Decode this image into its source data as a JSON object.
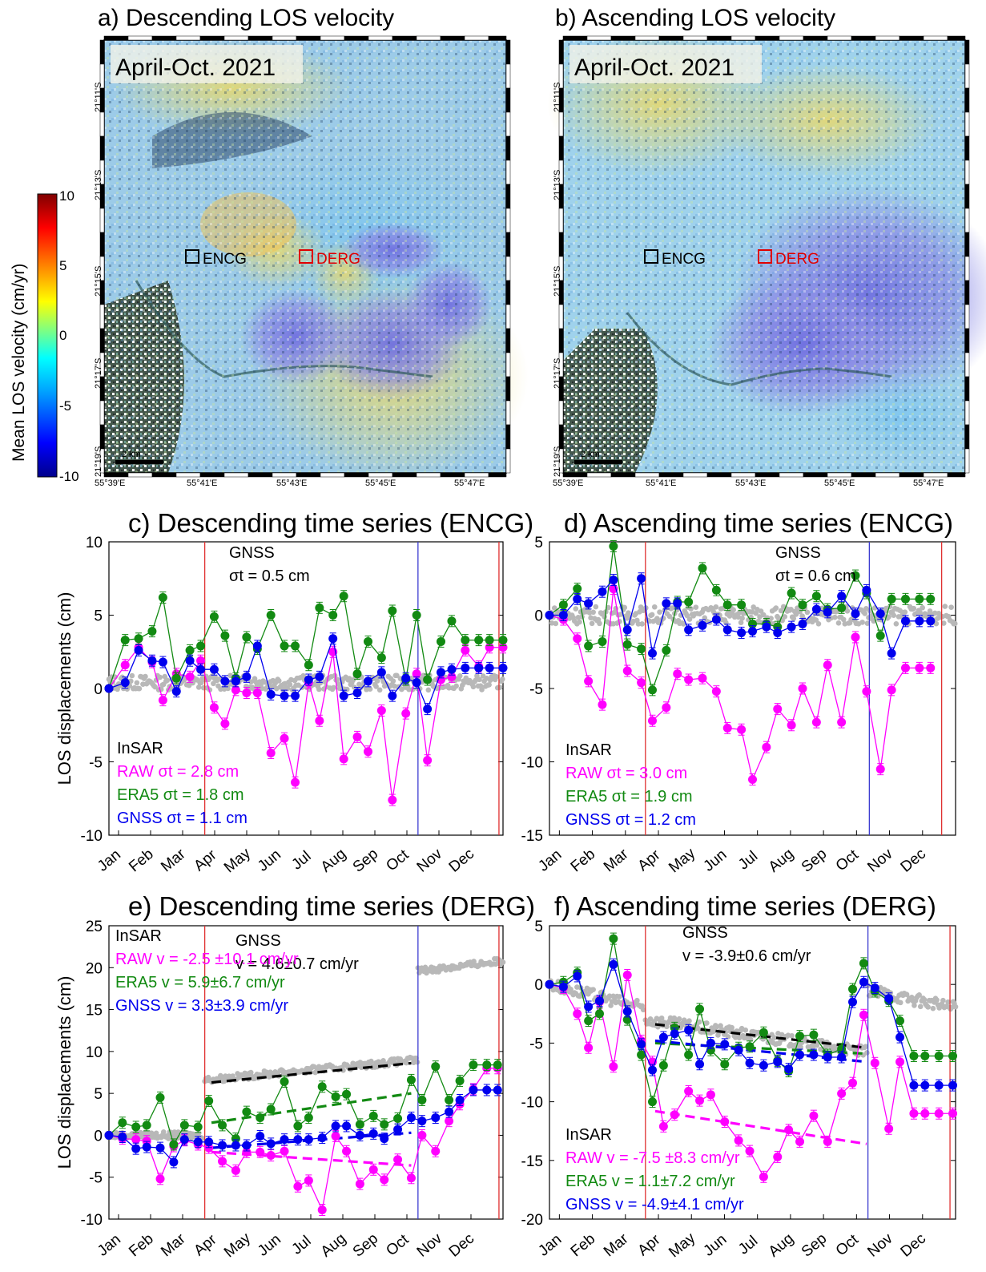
{
  "maps": {
    "colorbar": {
      "label": "Mean LOS velocity (cm/yr)",
      "ticks": [
        "10",
        "5",
        "0",
        "-5",
        "-10"
      ],
      "range": [
        -10,
        10
      ],
      "colors": [
        "#00008b",
        "#0000ff",
        "#00a0ff",
        "#00ffff",
        "#80ff80",
        "#ffff00",
        "#ff8000",
        "#ff0000",
        "#800000"
      ]
    },
    "panels": [
      {
        "title": "a) Descending LOS velocity",
        "period_label": "April-Oct. 2021",
        "lat_ticks": [
          "21°11'S",
          "21°13'S",
          "21°15'S",
          "21°17'S",
          "21°19'S"
        ],
        "lon_ticks": [
          "55°39'E",
          "55°41'E",
          "55°43'E",
          "55°45'E",
          "55°47'E"
        ],
        "scale_label": "2 km",
        "stations": [
          {
            "name": "ENCG",
            "color": "#000000"
          },
          {
            "name": "DERG",
            "color": "#e00000"
          }
        ]
      },
      {
        "title": "b) Ascending LOS velocity",
        "period_label": "April-Oct. 2021",
        "lat_ticks": [
          "21°11'S",
          "21°13'S",
          "21°15'S",
          "21°17'S",
          "21°19'S"
        ],
        "lon_ticks": [
          "55°39'E",
          "55°41'E",
          "55°43'E",
          "55°45'E",
          "55°47'E"
        ],
        "scale_label": "2 km",
        "stations": [
          {
            "name": "ENCG",
            "color": "#000000"
          },
          {
            "name": "DERG",
            "color": "#e00000"
          }
        ]
      }
    ]
  },
  "chart_data": [
    {
      "type": "line",
      "title": "c) Descending time series (ENCG)",
      "ylabel": "LOS displacements (cm)",
      "xlabel": "",
      "ylim": [
        -10,
        10
      ],
      "yticks": [
        10,
        5,
        0,
        -5,
        -10
      ],
      "months": [
        "Jan",
        "Feb",
        "Mar",
        "Apr",
        "May",
        "Jun",
        "Jul",
        "Aug",
        "Sep",
        "Oct",
        "Nov",
        "Dec"
      ],
      "x": [
        0.0,
        0.6,
        1.1,
        1.6,
        2.0,
        2.5,
        3.0,
        3.4,
        3.9,
        4.3,
        4.7,
        5.1,
        5.5,
        6.0,
        6.5,
        6.9,
        7.4,
        7.8,
        8.3,
        8.7,
        9.2,
        9.6,
        10.1,
        10.5,
        11.0,
        11.4,
        11.8,
        12.3,
        12.7,
        13.2,
        13.7,
        14.1,
        14.6
      ],
      "vlines": [
        {
          "x": 3.55,
          "color": "#e03030"
        },
        {
          "x": 11.45,
          "color": "#3c3cd0"
        },
        {
          "x": 14.45,
          "color": "#e03030"
        }
      ],
      "series": [
        {
          "name": "RAW",
          "color": "#ff00ff",
          "values": [
            0.0,
            1.6,
            2.8,
            1.8,
            -0.8,
            1.0,
            0.8,
            1.9,
            -1.3,
            -2.4,
            -0.1,
            -0.3,
            -0.3,
            -4.4,
            -3.4,
            -6.4,
            0.4,
            -2.2,
            2.5,
            -4.8,
            -3.3,
            -4.3,
            -1.5,
            -7.6,
            -1.7,
            1.0,
            -4.9,
            0.6,
            0.8,
            2.6,
            1.5,
            2.8,
            2.8
          ]
        },
        {
          "name": "ERA5",
          "color": "#128a12",
          "values": [
            0.0,
            3.3,
            3.4,
            3.9,
            6.2,
            0.7,
            2.6,
            2.9,
            4.9,
            3.6,
            0.7,
            3.5,
            2.7,
            5.0,
            2.9,
            2.9,
            1.6,
            5.5,
            5.0,
            6.3,
            1.0,
            3.2,
            2.1,
            5.3,
            0.6,
            5.0,
            0.6,
            3.2,
            4.6,
            3.3,
            3.3,
            3.3,
            3.3
          ]
        },
        {
          "name": "GNSS",
          "color": "#0000ee",
          "values": [
            0.0,
            0.4,
            2.6,
            1.9,
            1.8,
            -0.2,
            1.9,
            1.3,
            1.3,
            0.5,
            0.5,
            0.8,
            2.9,
            -0.4,
            -0.5,
            -0.5,
            0.6,
            0.8,
            3.4,
            -0.5,
            -0.3,
            0.5,
            1.1,
            -0.5,
            0.7,
            0.4,
            -1.4,
            1.1,
            1.3,
            1.4,
            1.4,
            1.4,
            1.4
          ]
        }
      ],
      "gnss_band": {
        "center": 0.4,
        "spread": 0.5
      },
      "annotations": [
        {
          "text": "GNSS",
          "color": "#000000"
        },
        {
          "text": "σt = 0.5 cm",
          "color": "#000000"
        }
      ],
      "legend": [
        {
          "text": "InSAR",
          "color": "#000000"
        },
        {
          "text": "RAW   σt = 2.8 cm",
          "color": "#ff00ff"
        },
        {
          "text": "ERA5  σt = 1.8 cm",
          "color": "#128a12"
        },
        {
          "text": "GNSS σt = 1.1 cm",
          "color": "#0000ee"
        }
      ],
      "legend_placement": "bottom-left"
    },
    {
      "type": "line",
      "title": "d) Ascending time series (ENCG)",
      "ylabel": "",
      "xlabel": "",
      "ylim": [
        -15,
        5
      ],
      "yticks": [
        5,
        0,
        -5,
        -10,
        -15
      ],
      "months": [
        "Jan",
        "Feb",
        "Mar",
        "Apr",
        "May",
        "Jun",
        "Jul",
        "Aug",
        "Sep",
        "Oct",
        "Nov",
        "Dec"
      ],
      "x": [
        0.0,
        0.5,
        1.0,
        1.4,
        1.9,
        2.3,
        2.8,
        3.3,
        3.7,
        4.2,
        4.6,
        5.0,
        5.5,
        6.0,
        6.4,
        6.9,
        7.3,
        7.8,
        8.2,
        8.7,
        9.1,
        9.6,
        10.0,
        10.5,
        11.0,
        11.4,
        11.9,
        12.3,
        12.8,
        13.3,
        13.7
      ],
      "vlines": [
        {
          "x": 3.45,
          "color": "#e03030"
        },
        {
          "x": 11.5,
          "color": "#3c3cd0"
        },
        {
          "x": 14.1,
          "color": "#e03030"
        }
      ],
      "series": [
        {
          "name": "RAW",
          "color": "#ff00ff",
          "values": [
            0.0,
            -0.3,
            -1.6,
            -4.5,
            -6.1,
            1.8,
            -3.8,
            -4.6,
            -7.2,
            -6.3,
            -4.0,
            -4.4,
            -4.3,
            -5.2,
            -7.7,
            -7.8,
            -11.2,
            -9.0,
            -6.4,
            -7.5,
            -5.0,
            -7.3,
            -3.4,
            -7.3,
            -1.5,
            -5.2,
            -10.5,
            -5.1,
            -3.6,
            -3.6,
            -3.6
          ]
        },
        {
          "name": "ERA5",
          "color": "#128a12",
          "values": [
            0.0,
            0.7,
            1.8,
            -2.1,
            -1.8,
            4.7,
            -2.0,
            -2.3,
            -5.1,
            -2.4,
            0.9,
            0.9,
            3.2,
            1.7,
            0.7,
            0.7,
            -0.6,
            -0.6,
            -0.8,
            1.5,
            0.7,
            1.3,
            0.4,
            0.5,
            2.7,
            1.5,
            -1.4,
            1.1,
            1.1,
            1.1,
            1.1
          ]
        },
        {
          "name": "GNSS",
          "color": "#0000ee",
          "values": [
            0.0,
            0.0,
            1.1,
            0.8,
            1.6,
            2.4,
            -1.0,
            2.5,
            -2.6,
            0.8,
            0.8,
            -1.0,
            -0.7,
            -0.3,
            -1.0,
            -1.2,
            -1.1,
            -0.8,
            -1.2,
            -0.8,
            -0.6,
            0.4,
            0.2,
            1.3,
            0.1,
            1.7,
            0.1,
            -2.6,
            -0.4,
            -0.4,
            -0.4
          ]
        }
      ],
      "gnss_band": {
        "center": 0.0,
        "spread": 0.6
      },
      "annotations": [
        {
          "text": "GNSS",
          "color": "#000000"
        },
        {
          "text": "σt = 0.6 cm",
          "color": "#000000"
        }
      ],
      "legend": [
        {
          "text": "InSAR",
          "color": "#000000"
        },
        {
          "text": "RAW   σt = 3.0 cm",
          "color": "#ff00ff"
        },
        {
          "text": "ERA5  σt = 1.9 cm",
          "color": "#128a12"
        },
        {
          "text": "GNSS σt = 1.2 cm",
          "color": "#0000ee"
        }
      ],
      "legend_placement": "bottom-left"
    },
    {
      "type": "line",
      "title": "e) Descending time series (DERG)",
      "ylabel": "LOS displacements (cm)",
      "xlabel": "",
      "ylim": [
        -10,
        25
      ],
      "yticks": [
        25,
        20,
        15,
        10,
        5,
        0,
        -5,
        -10
      ],
      "months": [
        "Jan",
        "Feb",
        "Mar",
        "Apr",
        "May",
        "Jun",
        "Jul",
        "Aug",
        "Sep",
        "Oct",
        "Nov",
        "Dec"
      ],
      "x": [
        0.0,
        0.5,
        1.0,
        1.4,
        1.9,
        2.4,
        2.8,
        3.3,
        3.7,
        4.2,
        4.7,
        5.1,
        5.6,
        6.0,
        6.5,
        7.0,
        7.4,
        7.9,
        8.4,
        8.8,
        9.3,
        9.8,
        10.2,
        10.7,
        11.2,
        11.6,
        12.1,
        12.6,
        13.0,
        13.5,
        14.0,
        14.4
      ],
      "vlines": [
        {
          "x": 3.55,
          "color": "#e03030"
        },
        {
          "x": 11.45,
          "color": "#3c3cd0"
        },
        {
          "x": 14.45,
          "color": "#e03030"
        }
      ],
      "series": [
        {
          "name": "RAW",
          "color": "#ff00ff",
          "values": [
            0.0,
            -0.4,
            -0.5,
            -0.7,
            -5.2,
            -1.3,
            -0.6,
            -1.1,
            -1.5,
            -3.1,
            -4.2,
            -2.0,
            -2.0,
            -2.4,
            -1.9,
            -6.1,
            -5.4,
            -8.9,
            -0.1,
            -1.9,
            -5.8,
            -4.1,
            -5.3,
            -2.9,
            -5.1,
            0.0,
            -1.9,
            1.7,
            3.7,
            5.5,
            8.0,
            8.0
          ]
        },
        {
          "name": "ERA5",
          "color": "#128a12",
          "values": [
            0.0,
            1.5,
            1.0,
            1.2,
            4.5,
            -1.1,
            1.2,
            1.0,
            4.1,
            1.2,
            -0.4,
            2.8,
            2.1,
            3.1,
            6.4,
            1.1,
            2.1,
            5.8,
            4.6,
            4.9,
            1.3,
            2.3,
            1.3,
            2.0,
            6.6,
            4.2,
            8.2,
            4.2,
            6.5,
            8.4,
            8.4,
            8.4
          ]
        },
        {
          "name": "GNSS",
          "color": "#0000ee",
          "values": [
            0.0,
            -0.2,
            -1.6,
            -1.4,
            -1.5,
            -3.2,
            -0.5,
            -0.8,
            -0.8,
            -1.2,
            -1.2,
            -1.2,
            -0.1,
            -1.0,
            -0.5,
            -0.5,
            -0.5,
            -0.3,
            1.1,
            1.1,
            0.0,
            0.2,
            -0.4,
            0.7,
            2.1,
            1.7,
            2.1,
            2.8,
            4.2,
            5.4,
            5.4,
            5.4
          ]
        }
      ],
      "trends": [
        {
          "color": "#ff00ff",
          "x0": 3.8,
          "y0": -2.0,
          "x1": 11.2,
          "y1": -3.6
        },
        {
          "color": "#128a12",
          "x0": 3.8,
          "y0": 1.5,
          "x1": 11.2,
          "y1": 5.0
        },
        {
          "color": "#0000ee",
          "x0": 3.8,
          "y0": -1.5,
          "x1": 11.2,
          "y1": 0.3
        },
        {
          "color": "#000000",
          "x0": 3.8,
          "y0": 6.3,
          "x1": 11.2,
          "y1": 8.6
        }
      ],
      "gnss_band": {
        "segments": [
          [
            0.0,
            3.5,
            0.0,
            0.0
          ],
          [
            3.55,
            11.45,
            6.6,
            9.0
          ],
          [
            11.45,
            14.6,
            19.6,
            20.8
          ]
        ],
        "spread": 0.4
      },
      "annotations": [
        {
          "text": "GNSS",
          "color": "#000000"
        },
        {
          "text": "v = 4.6±0.7 cm/yr",
          "color": "#000000"
        }
      ],
      "legend": [
        {
          "text": "InSAR",
          "color": "#000000"
        },
        {
          "text": "RAW   v = -2.5 ±10.1 cm/yr",
          "color": "#ff00ff"
        },
        {
          "text": "ERA5  v = 5.9±6.7 cm/yr",
          "color": "#128a12"
        },
        {
          "text": "GNSS v = 3.3±3.9 cm/yr",
          "color": "#0000ee"
        }
      ],
      "legend_placement": "top-left"
    },
    {
      "type": "line",
      "title": "f) Ascending time series (DERG)",
      "ylabel": "",
      "xlabel": "",
      "ylim": [
        -20,
        5
      ],
      "yticks": [
        5,
        0,
        -5,
        -10,
        -15,
        -20
      ],
      "months": [
        "Jan",
        "Feb",
        "Mar",
        "Apr",
        "May",
        "Jun",
        "Jul",
        "Aug",
        "Sep",
        "Oct",
        "Nov",
        "Dec"
      ],
      "x": [
        0.0,
        0.5,
        1.0,
        1.4,
        1.8,
        2.3,
        2.8,
        3.3,
        3.7,
        4.1,
        4.5,
        5.0,
        5.4,
        5.8,
        6.3,
        6.8,
        7.2,
        7.7,
        8.2,
        8.6,
        9.0,
        9.5,
        10.0,
        10.5,
        10.9,
        11.3,
        11.7,
        12.2,
        12.6,
        13.1,
        13.5,
        14.0,
        14.5
      ],
      "vlines": [
        {
          "x": 3.45,
          "color": "#e03030"
        },
        {
          "x": 11.45,
          "color": "#3c3cd0"
        },
        {
          "x": 14.4,
          "color": "#e03030"
        }
      ],
      "series": [
        {
          "name": "RAW",
          "color": "#ff00ff",
          "values": [
            0.0,
            -0.3,
            -2.5,
            -5.4,
            -1.5,
            -7.0,
            0.8,
            -4.8,
            -6.6,
            -12.1,
            -11.1,
            -9.1,
            -9.9,
            -9.4,
            -11.7,
            -13.3,
            -14.2,
            -16.4,
            -14.7,
            -12.4,
            -13.4,
            -11.2,
            -13.4,
            -9.3,
            -8.4,
            -2.6,
            -6.7,
            -12.3,
            -6.6,
            -11.0,
            -11.0,
            -11.0,
            -11.0
          ]
        },
        {
          "name": "ERA5",
          "color": "#128a12",
          "values": [
            0.0,
            0.2,
            1.0,
            -3.1,
            -2.5,
            3.9,
            -3.0,
            -6.0,
            -10.0,
            -6.9,
            -3.7,
            -6.0,
            -2.1,
            -5.6,
            -6.8,
            -5.4,
            -5.3,
            -4.1,
            -6.5,
            -7.4,
            -4.4,
            -4.3,
            -6.0,
            -5.5,
            -0.4,
            1.8,
            -0.6,
            -1.4,
            -3.1,
            -6.1,
            -6.1,
            -6.1,
            -6.1
          ]
        },
        {
          "name": "GNSS",
          "color": "#0000ee",
          "values": [
            0.0,
            -0.2,
            0.7,
            -1.9,
            -1.4,
            1.7,
            -2.3,
            -5.1,
            -7.3,
            -4.5,
            -4.2,
            -3.9,
            -6.8,
            -5.0,
            -5.1,
            -5.6,
            -6.7,
            -6.9,
            -6.6,
            -7.2,
            -6.0,
            -6.0,
            -6.2,
            -6.2,
            -1.5,
            0.2,
            -0.3,
            -1.2,
            -4.5,
            -8.6,
            -8.6,
            -8.6,
            -8.6
          ]
        }
      ],
      "trends": [
        {
          "color": "#ff00ff",
          "x0": 3.8,
          "y0": -10.8,
          "x1": 11.4,
          "y1": -13.6
        },
        {
          "color": "#128a12",
          "x0": 3.8,
          "y0": -5.0,
          "x1": 11.4,
          "y1": -5.9
        },
        {
          "color": "#0000ee",
          "x0": 3.8,
          "y0": -4.8,
          "x1": 11.4,
          "y1": -6.6
        },
        {
          "color": "#000000",
          "x0": 3.8,
          "y0": -3.4,
          "x1": 11.4,
          "y1": -5.4
        }
      ],
      "gnss_band": {
        "segments": [
          [
            0.0,
            3.4,
            0.0,
            -2.0
          ],
          [
            3.45,
            11.45,
            -3.0,
            -5.8
          ],
          [
            11.45,
            14.6,
            -0.5,
            -2.0
          ]
        ],
        "spread": 0.5
      },
      "annotations": [
        {
          "text": "GNSS",
          "color": "#000000"
        },
        {
          "text": "v = -3.9±0.6 cm/yr",
          "color": "#000000"
        }
      ],
      "legend": [
        {
          "text": "InSAR",
          "color": "#000000"
        },
        {
          "text": "RAW   v = -7.5 ±8.3 cm/yr",
          "color": "#ff00ff"
        },
        {
          "text": "ERA5  v = 1.1±7.2 cm/yr",
          "color": "#128a12"
        },
        {
          "text": "GNSS v = -4.9±4.1 cm/yr",
          "color": "#0000ee"
        }
      ],
      "legend_placement": "bottom-left"
    }
  ]
}
